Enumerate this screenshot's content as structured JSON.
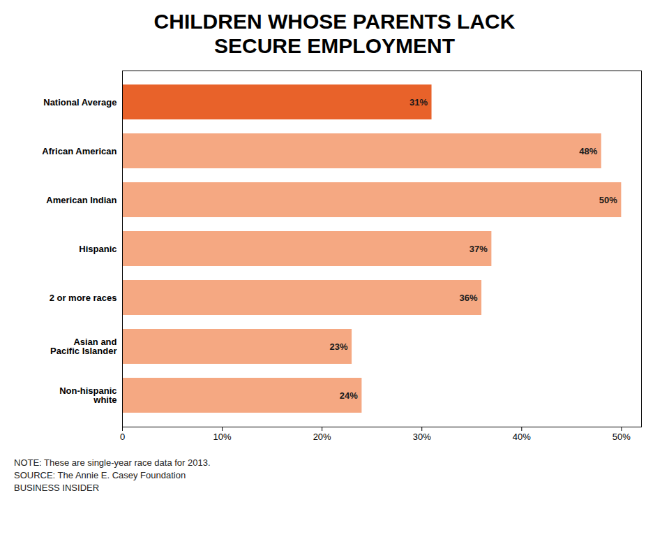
{
  "chart_data": {
    "type": "bar",
    "title": "CHILDREN WHOSE PARENTS LACK\nSECURE EMPLOYMENT",
    "orientation": "horizontal",
    "categories": [
      "Non-hispanic\nwhite",
      "Asian and\nPacific Islander",
      "2 or more races",
      "Hispanic",
      "American Indian",
      "African American",
      "National Average"
    ],
    "values": [
      24,
      23,
      36,
      37,
      50,
      48,
      31
    ],
    "value_labels": [
      "24%",
      "23%",
      "36%",
      "37%",
      "50%",
      "48%",
      "31%"
    ],
    "data_labels": true,
    "colors": [
      "#f5a882",
      "#f5a882",
      "#f5a882",
      "#f5a882",
      "#f5a882",
      "#f5a882",
      "#e8622a"
    ],
    "xlim": [
      0,
      52
    ],
    "xticks": [
      0,
      {
        "value": 10,
        "label": "10%"
      },
      {
        "value": 20,
        "label": "20%"
      },
      {
        "value": 30,
        "label": "30%"
      },
      {
        "value": 40,
        "label": "40%"
      },
      {
        "value": 50,
        "label": "50%"
      }
    ],
    "grid": false,
    "annotations": [
      "NOTE: These are single-year race data for 2013.",
      "SOURCE: The Annie E. Casey Foundation",
      "BUSINESS INSIDER"
    ]
  }
}
